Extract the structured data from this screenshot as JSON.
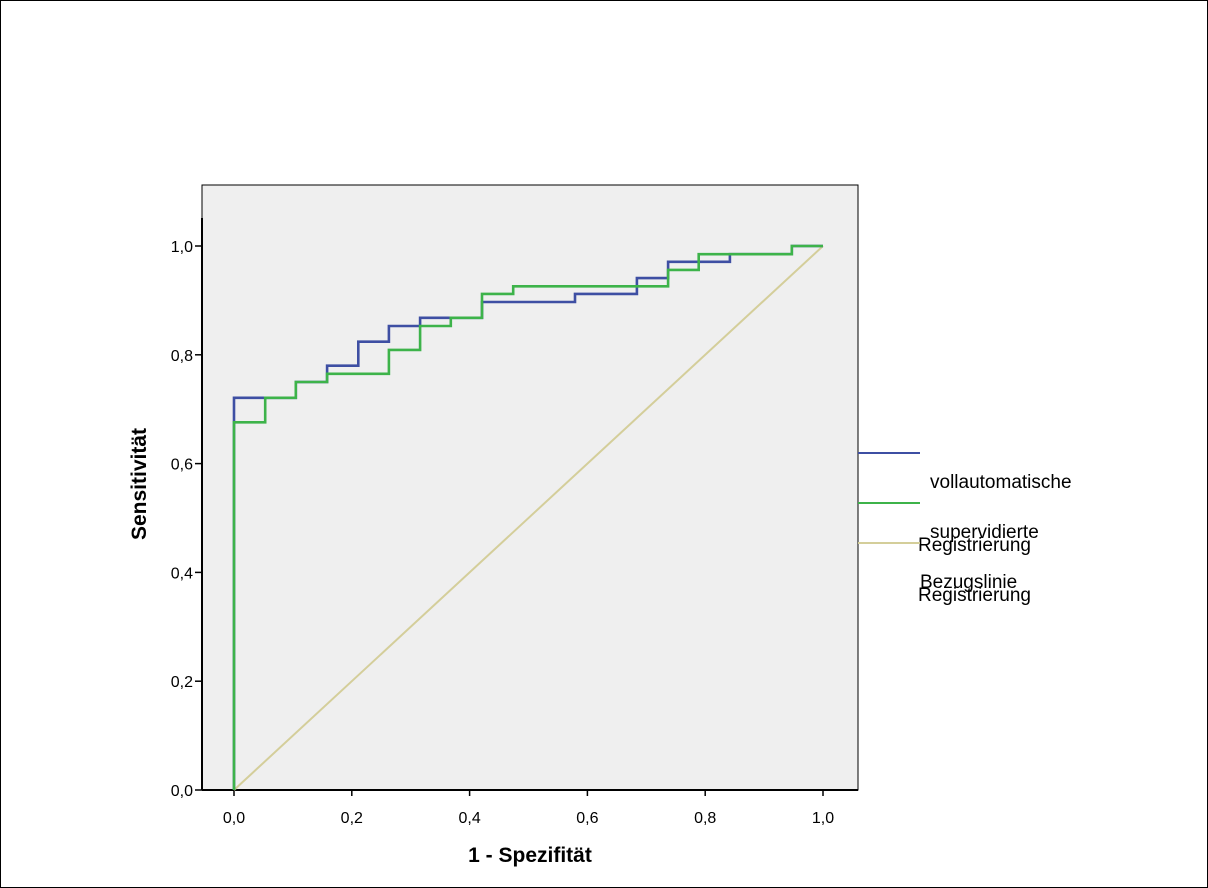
{
  "chart_data": {
    "type": "line",
    "title": "",
    "xlabel": "1 - Spezifität",
    "ylabel": "Sensitivität",
    "xlim": [
      0,
      1
    ],
    "ylim": [
      0,
      1
    ],
    "xticks": [
      "0,0",
      "0,2",
      "0,4",
      "0,6",
      "0,8",
      "1,0"
    ],
    "yticks": [
      "0,0",
      "0,2",
      "0,4",
      "0,6",
      "0,8",
      "1,0"
    ],
    "grid": false,
    "legend_position": "right",
    "background": "#efefef",
    "series": [
      {
        "name": "vollautomatische Registrierung",
        "color": "#3e4fa3",
        "step": true,
        "points": [
          [
            0,
            0
          ],
          [
            0,
            0.721
          ],
          [
            0.053,
            0.721
          ],
          [
            0.105,
            0.75
          ],
          [
            0.158,
            0.78
          ],
          [
            0.211,
            0.824
          ],
          [
            0.263,
            0.853
          ],
          [
            0.316,
            0.868
          ],
          [
            0.421,
            0.897
          ],
          [
            0.579,
            0.912
          ],
          [
            0.684,
            0.941
          ],
          [
            0.737,
            0.971
          ],
          [
            0.842,
            0.985
          ],
          [
            0.947,
            1.0
          ],
          [
            1,
            1
          ]
        ]
      },
      {
        "name": "supervidierte Registrierung",
        "color": "#3db34a",
        "step": true,
        "points": [
          [
            0,
            0
          ],
          [
            0,
            0.676
          ],
          [
            0.053,
            0.721
          ],
          [
            0.105,
            0.75
          ],
          [
            0.158,
            0.765
          ],
          [
            0.263,
            0.809
          ],
          [
            0.316,
            0.853
          ],
          [
            0.368,
            0.868
          ],
          [
            0.421,
            0.912
          ],
          [
            0.474,
            0.926
          ],
          [
            0.737,
            0.956
          ],
          [
            0.789,
            0.985
          ],
          [
            0.947,
            1.0
          ],
          [
            1,
            1
          ]
        ]
      },
      {
        "name": "Bezugslinie",
        "color": "#d4ce9a",
        "step": false,
        "points": [
          [
            0,
            0
          ],
          [
            1,
            1
          ]
        ]
      }
    ]
  },
  "legend": [
    {
      "line1": "vollautomatische",
      "line2": "Registrierung",
      "color": "#3e4fa3"
    },
    {
      "line1": "supervidierte",
      "line2": "Registrierung",
      "color": "#3db34a"
    },
    {
      "line1": "Bezugslinie",
      "line2": "",
      "color": "#d4ce9a"
    }
  ]
}
